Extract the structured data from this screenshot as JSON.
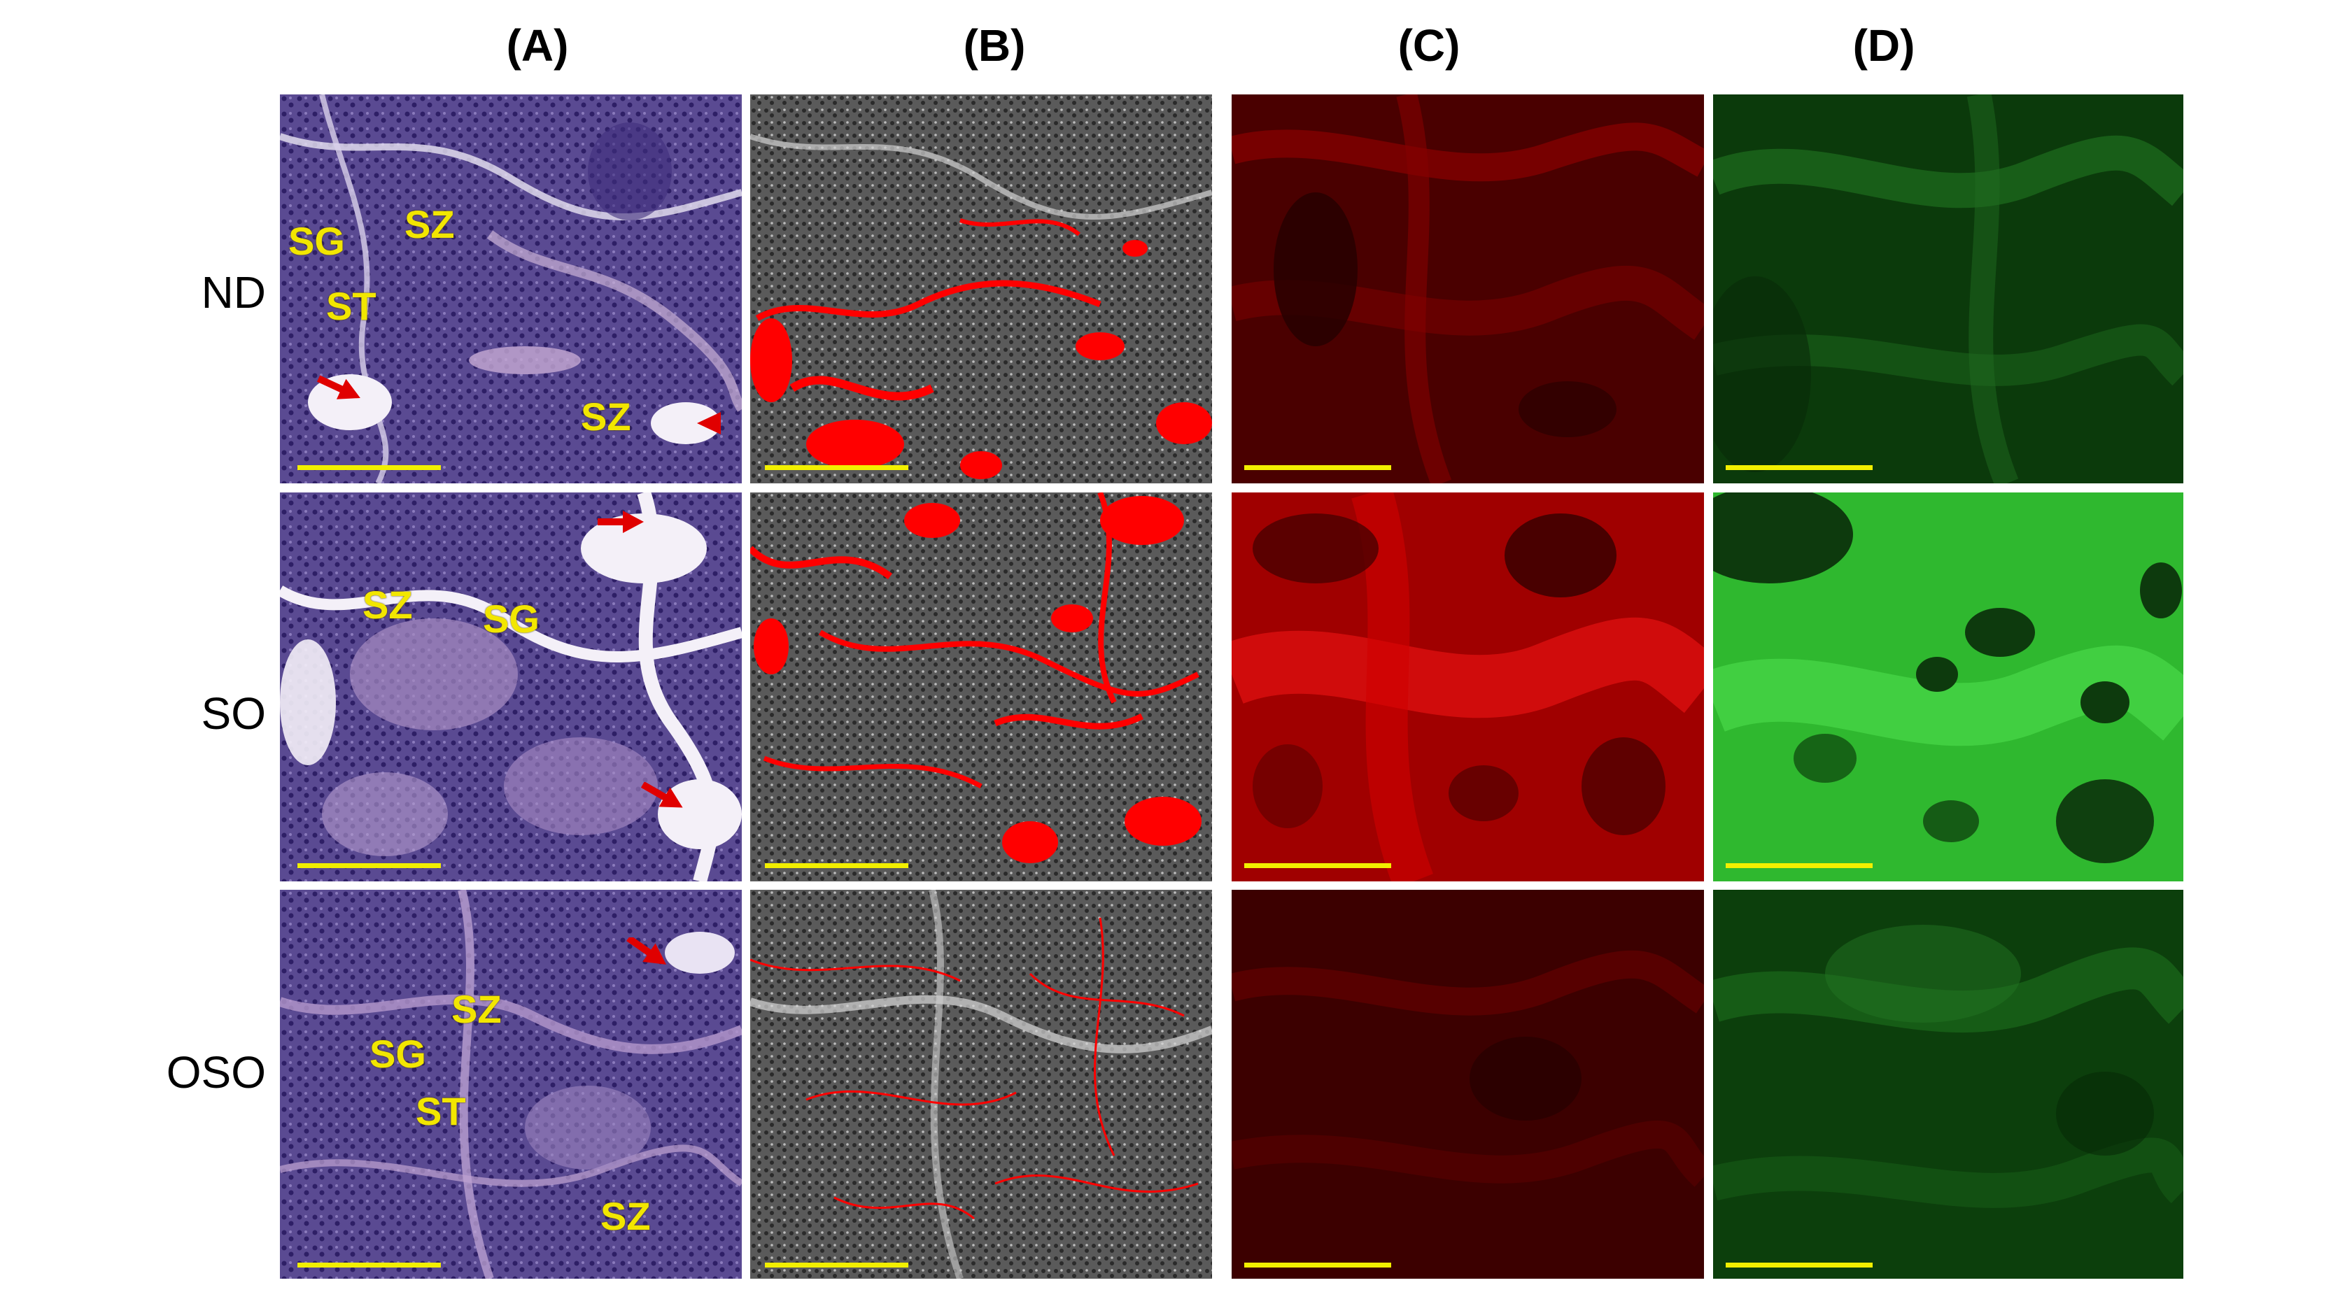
{
  "column_headers": [
    "(A)",
    "(B)",
    "(C)",
    "(D)"
  ],
  "row_labels": [
    "ND",
    "SO",
    "OSO"
  ],
  "tissue_labels": {
    "ND": [
      "SG",
      "SZ",
      "ST",
      "SZ"
    ],
    "SO": [
      "SZ",
      "SG"
    ],
    "OSO": [
      "SZ",
      "SG",
      "ST",
      "SZ"
    ]
  },
  "colors": {
    "he_stain": "#6a5a9e",
    "overlay_red": "#ff0000",
    "fluor_red": "#c00000",
    "fluor_green": "#2fcf2f",
    "label_yellow": "#f2e600",
    "scale_bar": "#f2ef00"
  },
  "icons": [
    "red-arrow-icon",
    "scale-bar"
  ]
}
